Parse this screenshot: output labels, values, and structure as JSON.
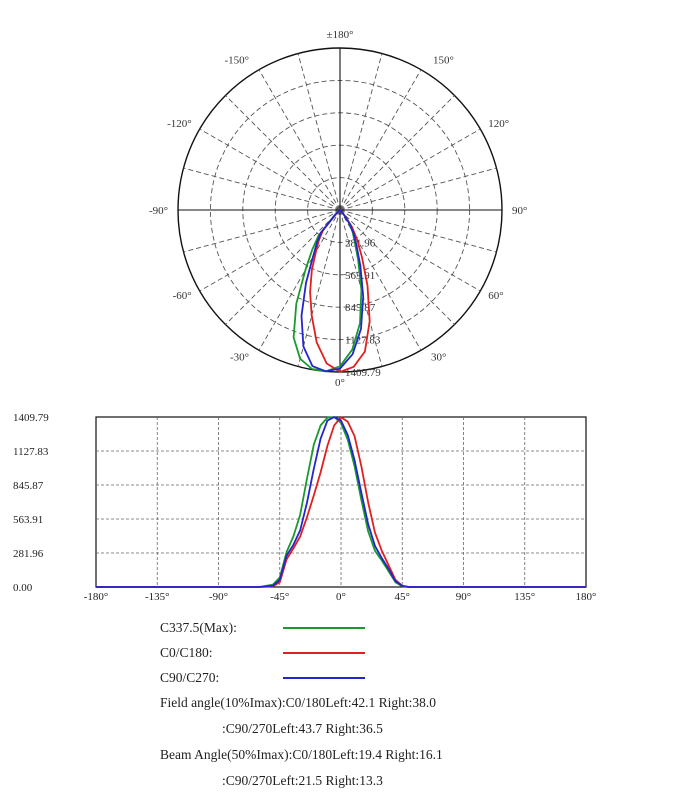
{
  "chart_data": [
    {
      "type": "polar",
      "angle_labels": [
        "±180°",
        "150°",
        "120°",
        "90°",
        "60°",
        "30°",
        "0°",
        "-30°",
        "-60°",
        "-90°",
        "-120°",
        "-150°"
      ],
      "radial_labels": [
        "281.96",
        "563.91",
        "845.87",
        "1127.83",
        "1409.79"
      ],
      "rmax": 1409.79,
      "series": [
        {
          "name": "C337.5(Max)",
          "color": "#1a9a2a",
          "angles": [
            -60,
            -50,
            -45,
            -40,
            -35,
            -30,
            -25,
            -20,
            -15,
            -10,
            -5,
            0,
            5,
            10,
            15,
            20,
            25,
            30,
            35,
            40,
            45,
            50,
            60
          ],
          "values": [
            0,
            20,
            80,
            290,
            420,
            600,
            900,
            1180,
            1340,
            1405,
            1409,
            1360,
            1220,
            1000,
            720,
            460,
            300,
            220,
            130,
            40,
            5,
            0,
            0
          ]
        },
        {
          "name": "C0/C180",
          "color": "#e02020",
          "angles": [
            -60,
            -50,
            -45,
            -40,
            -35,
            -30,
            -25,
            -20,
            -15,
            -10,
            -5,
            0,
            5,
            10,
            15,
            20,
            25,
            30,
            35,
            40,
            45,
            50,
            60
          ],
          "values": [
            0,
            5,
            40,
            230,
            320,
            420,
            580,
            760,
            950,
            1170,
            1340,
            1409,
            1370,
            1250,
            1000,
            700,
            450,
            300,
            180,
            60,
            10,
            0,
            0
          ]
        },
        {
          "name": "C90/C270",
          "color": "#2424d0",
          "angles": [
            -60,
            -50,
            -45,
            -40,
            -35,
            -30,
            -25,
            -20,
            -15,
            -10,
            -5,
            0,
            5,
            10,
            15,
            20,
            25,
            30,
            35,
            40,
            45,
            50,
            60
          ],
          "values": [
            0,
            10,
            60,
            260,
            350,
            470,
            700,
            980,
            1230,
            1380,
            1409,
            1380,
            1260,
            1050,
            780,
            520,
            340,
            240,
            150,
            50,
            8,
            0,
            0
          ]
        }
      ]
    },
    {
      "type": "line",
      "x_ticks": [
        "-180°",
        "-135°",
        "-90°",
        "-45°",
        "0°",
        "45°",
        "90°",
        "135°",
        "180°"
      ],
      "y_ticks": [
        "0.00",
        "281.96",
        "563.91",
        "845.87",
        "1127.83",
        "1409.79"
      ],
      "xlim": [
        -180,
        180
      ],
      "ylim": [
        0,
        1409.79
      ],
      "series_ref": "same as polar series (angle vs intensity)"
    }
  ],
  "legend": [
    {
      "label": "C337.5(Max):",
      "color": "#1a9a2a"
    },
    {
      "label": "C0/C180:",
      "color": "#e02020"
    },
    {
      "label": "C90/C270:",
      "color": "#2424d0"
    }
  ],
  "info": {
    "field_angle_line1": "Field angle(10%Imax):C0/180Left:42.1 Right:38.0",
    "field_angle_line2": ":C90/270Left:43.7 Right:36.5",
    "beam_angle_line1": "Beam Angle(50%Imax):C0/180Left:19.4 Right:16.1",
    "beam_angle_line2": ":C90/270Left:21.5 Right:13.3"
  }
}
